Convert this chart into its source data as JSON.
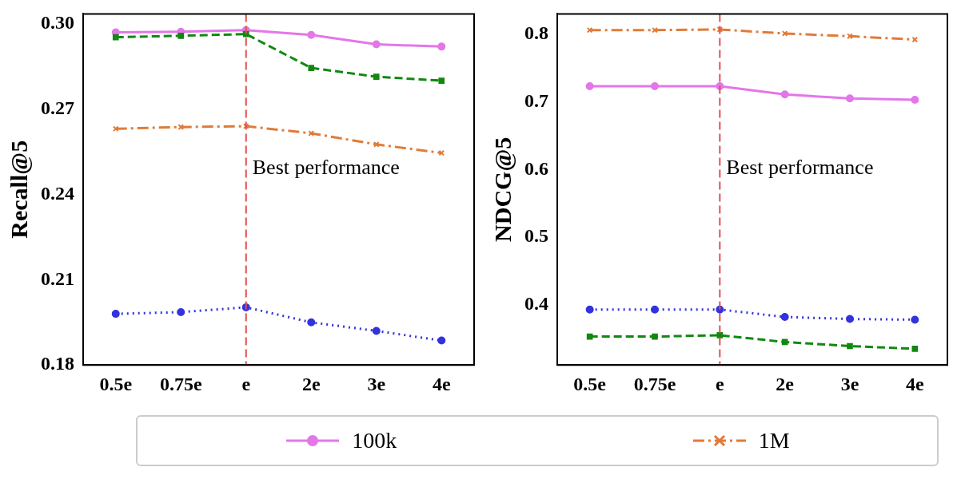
{
  "chart_data": [
    {
      "type": "line",
      "ylabel": "Recall@5",
      "categories": [
        "0.5e",
        "0.75e",
        "e",
        "2e",
        "3e",
        "4e"
      ],
      "ylim": [
        0.18,
        0.3035
      ],
      "yticks": [
        0.18,
        0.21,
        0.24,
        0.27,
        {
          "value": 0.3,
          "label": "0.30"
        }
      ],
      "grid": false,
      "legend": "bottom",
      "ref_lines": [
        {
          "axis": "x",
          "value": "e",
          "label": "Best performance",
          "color": "#e05050",
          "line_style": "dashed"
        }
      ],
      "series": [
        {
          "name": "100k",
          "color": "#e377e8",
          "marker": "circle",
          "line_style": "solid",
          "values": [
            0.297,
            0.2972,
            0.2978,
            0.2961,
            0.2928,
            0.292
          ]
        },
        {
          "name": "1M",
          "color": "#e07b39",
          "marker": "cross",
          "line_style": "dashdot",
          "values": [
            0.2631,
            0.2637,
            0.264,
            0.2615,
            0.2576,
            0.2546
          ]
        },
        {
          "color": "#118811",
          "marker": "square",
          "line_style": "dashed",
          "values": [
            0.2953,
            0.2958,
            0.2964,
            0.2845,
            0.2814,
            0.28
          ]
        },
        {
          "color": "#3333dd",
          "marker": "circle",
          "line_style": "dotted",
          "values": [
            0.198,
            0.1986,
            0.2003,
            0.195,
            0.192,
            0.1886
          ]
        }
      ]
    },
    {
      "type": "line",
      "ylabel": "NDCG@5",
      "categories": [
        "0.5e",
        "0.75e",
        "e",
        "2e",
        "3e",
        "4e"
      ],
      "ylim": [
        0.311,
        0.83
      ],
      "yticks": [
        0.4,
        0.5,
        0.6,
        0.7,
        0.8
      ],
      "grid": false,
      "ref_lines": [
        {
          "axis": "x",
          "value": "e",
          "label": "Best performance",
          "color": "#e05050",
          "line_style": "dashed"
        }
      ],
      "series": [
        {
          "color": "#e377e8",
          "marker": "circle",
          "line_style": "solid",
          "values": [
            0.723,
            0.723,
            0.723,
            0.711,
            0.705,
            0.703
          ]
        },
        {
          "color": "#e07b39",
          "marker": "cross",
          "line_style": "dashdot",
          "values": [
            0.806,
            0.806,
            0.807,
            0.801,
            0.797,
            0.792
          ]
        },
        {
          "color": "#118811",
          "marker": "square",
          "line_style": "dashed",
          "values": [
            0.353,
            0.353,
            0.355,
            0.345,
            0.339,
            0.335
          ]
        },
        {
          "color": "#3333dd",
          "marker": "circle",
          "line_style": "dotted",
          "values": [
            0.393,
            0.393,
            0.393,
            0.382,
            0.379,
            0.378
          ]
        }
      ]
    }
  ]
}
